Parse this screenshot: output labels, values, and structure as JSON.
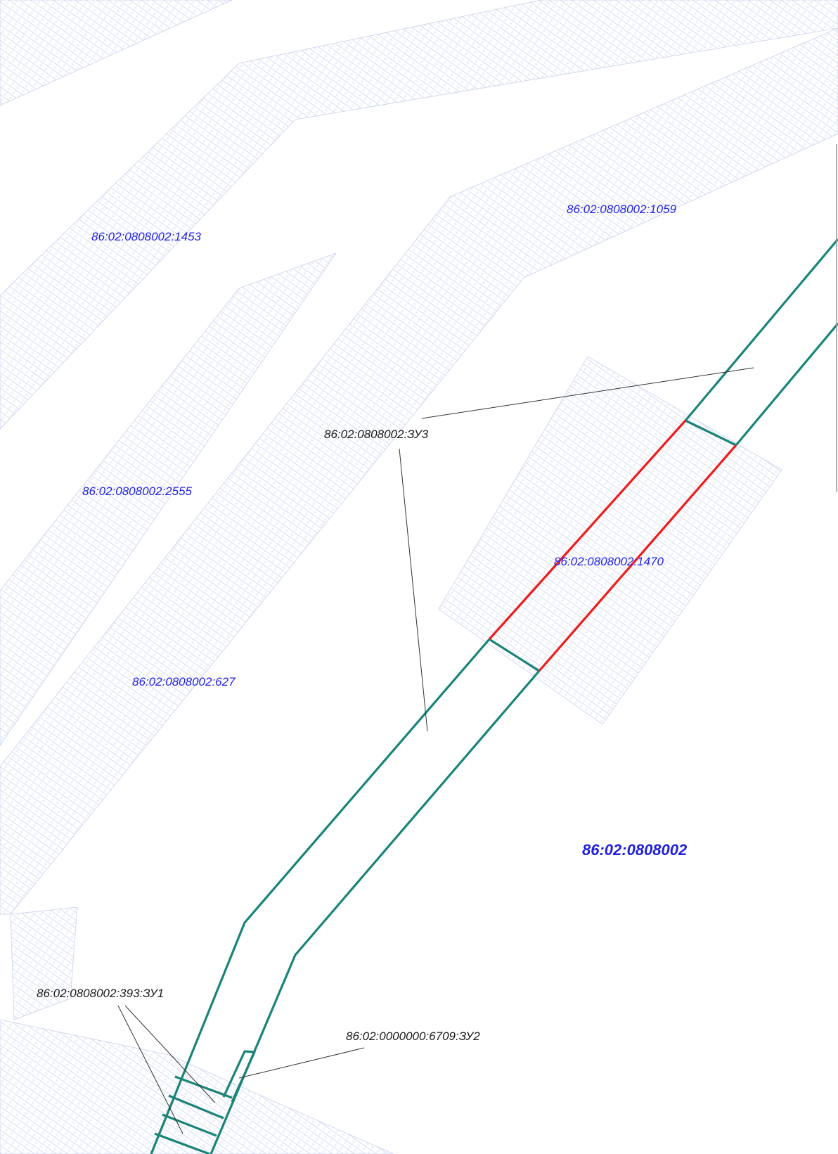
{
  "map": {
    "quarter_label": "86:02:0808002",
    "parcels": {
      "p1453": "86:02:0808002:1453",
      "p1059": "86:02:0808002:1059",
      "p2555": "86:02:0808002:2555",
      "p1470": "86:02:0808002:1470",
      "p627": "86:02:0808002:627"
    },
    "projected": {
      "zu3": "86:02:0808002:ЗУ3",
      "zu1": "86:02:0808002:393:ЗУ1",
      "zu2": "86:02:0000000:6709:ЗУ2"
    },
    "colors": {
      "boundary": "#1a8478",
      "highlight_boundary": "#ee1c1c",
      "parcel_label": "#2323e6",
      "hatch": "#c9d0ec"
    }
  }
}
